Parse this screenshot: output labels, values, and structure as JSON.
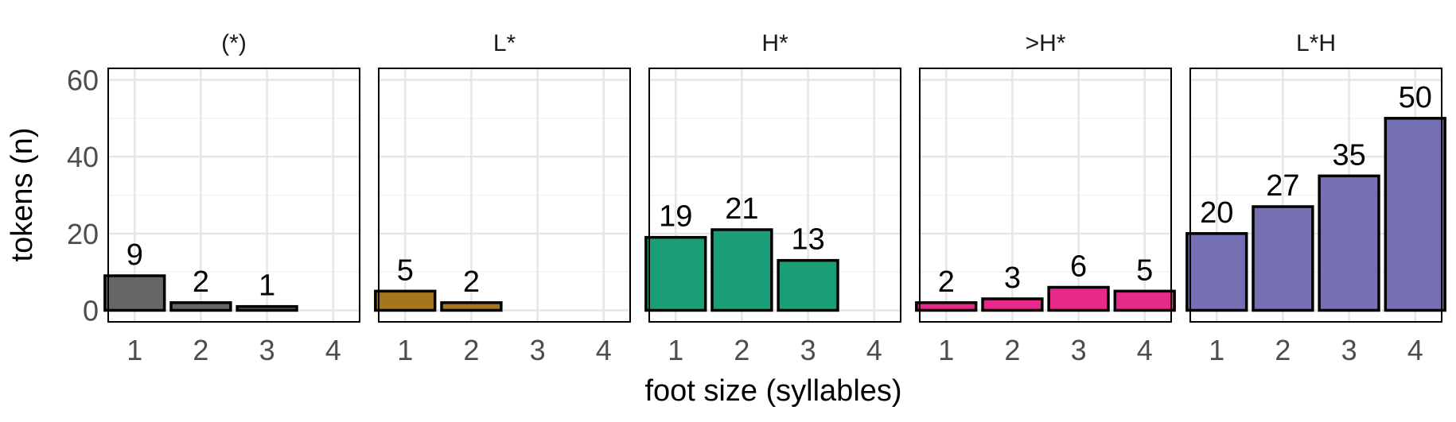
{
  "chart_data": {
    "type": "bar",
    "xlabel": "foot size (syllables)",
    "ylabel": "tokens (n)",
    "categories": [
      "1",
      "2",
      "3",
      "4"
    ],
    "ylim": [
      -3,
      63
    ],
    "yticks": [
      0,
      20,
      40,
      60
    ],
    "grid": true,
    "bar_outline_color": "#000000",
    "panels": [
      {
        "title": "(*)",
        "color": "#666666",
        "values": [
          9,
          2,
          1,
          0
        ]
      },
      {
        "title": "L*",
        "color": "#A6761D",
        "values": [
          5,
          2,
          0,
          0
        ]
      },
      {
        "title": "H*",
        "color": "#1B9E77",
        "values": [
          19,
          21,
          13,
          0
        ]
      },
      {
        "title": ">H*",
        "color": "#E7298A",
        "values": [
          2,
          3,
          6,
          5
        ]
      },
      {
        "title": "L*H",
        "color": "#7570B3",
        "values": [
          20,
          27,
          35,
          50
        ]
      }
    ]
  }
}
